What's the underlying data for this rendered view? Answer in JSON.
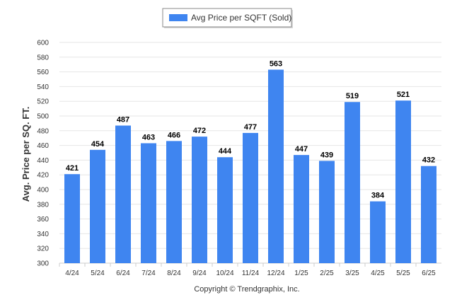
{
  "chart_data": {
    "type": "bar",
    "categories": [
      "4/24",
      "5/24",
      "6/24",
      "7/24",
      "8/24",
      "9/24",
      "10/24",
      "11/24",
      "12/24",
      "1/25",
      "2/25",
      "3/25",
      "4/25",
      "5/25",
      "6/25"
    ],
    "series": [
      {
        "name": "Avg Price per SQFT (Sold)",
        "values": [
          421,
          454,
          487,
          463,
          466,
          472,
          444,
          477,
          563,
          447,
          439,
          519,
          384,
          521,
          432
        ],
        "color": "#3f85f0"
      }
    ],
    "ylabel": "Avg. Price per SQ. FT.",
    "xlabel": "",
    "ylim": [
      300,
      600
    ],
    "y_ticks": [
      300,
      320,
      340,
      360,
      380,
      400,
      420,
      440,
      460,
      480,
      500,
      520,
      540,
      560,
      580,
      600
    ],
    "grid": true,
    "legend_position": "top-center",
    "data_labels": true
  },
  "credit": "Copyright © Trendgraphix, Inc."
}
